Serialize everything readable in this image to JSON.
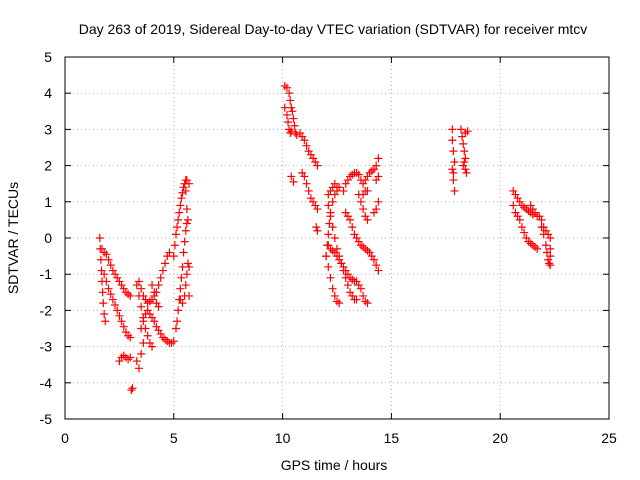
{
  "chart_data": {
    "type": "scatter",
    "title": "Day 263 of 2019, Sidereal Day-to-day VTEC variation (SDTVAR) for receiver mtcv",
    "xlabel": "GPS time / hours",
    "ylabel": "SDTVAR / TECUs",
    "xlim": [
      0,
      25
    ],
    "ylim": [
      -5,
      5
    ],
    "xticks": [
      0,
      5,
      10,
      15,
      20,
      25
    ],
    "yticks": [
      -5,
      -4,
      -3,
      -2,
      -1,
      0,
      1,
      2,
      3,
      4,
      5
    ],
    "grid": true,
    "marker": "+",
    "color": "#ff0000",
    "series": [
      {
        "points": [
          [
            1.6,
            0.0
          ],
          [
            1.62,
            -0.3
          ],
          [
            1.65,
            -0.6
          ],
          [
            1.68,
            -0.9
          ],
          [
            1.7,
            -1.2
          ],
          [
            1.73,
            -1.5
          ],
          [
            1.76,
            -1.8
          ],
          [
            1.8,
            -2.1
          ],
          [
            1.85,
            -2.3
          ],
          [
            1.7,
            -0.3
          ],
          [
            1.8,
            -0.4
          ],
          [
            1.9,
            -0.45
          ],
          [
            2.0,
            -0.6
          ],
          [
            2.1,
            -0.75
          ],
          [
            2.2,
            -0.9
          ],
          [
            2.3,
            -1.0
          ],
          [
            2.4,
            -1.1
          ],
          [
            2.5,
            -1.2
          ],
          [
            2.6,
            -1.3
          ],
          [
            2.7,
            -1.4
          ],
          [
            2.8,
            -1.5
          ],
          [
            2.9,
            -1.55
          ],
          [
            3.0,
            -1.6
          ],
          [
            1.8,
            -1.0
          ],
          [
            1.9,
            -1.2
          ],
          [
            2.0,
            -1.4
          ],
          [
            2.1,
            -1.55
          ],
          [
            2.2,
            -1.7
          ],
          [
            2.3,
            -1.85
          ],
          [
            2.4,
            -2.0
          ],
          [
            2.5,
            -2.15
          ],
          [
            2.6,
            -2.3
          ],
          [
            2.7,
            -2.45
          ],
          [
            2.8,
            -2.6
          ],
          [
            2.9,
            -2.7
          ],
          [
            3.0,
            -2.75
          ],
          [
            2.5,
            -3.4
          ],
          [
            2.6,
            -3.3
          ],
          [
            2.7,
            -3.25
          ],
          [
            2.8,
            -3.3
          ],
          [
            2.9,
            -3.35
          ],
          [
            3.0,
            -3.3
          ],
          [
            3.05,
            -4.2
          ],
          [
            3.1,
            -4.15
          ],
          [
            3.3,
            -1.3
          ],
          [
            3.4,
            -1.2
          ],
          [
            3.5,
            -1.4
          ],
          [
            3.6,
            -1.6
          ],
          [
            3.7,
            -1.7
          ],
          [
            3.8,
            -1.8
          ],
          [
            3.9,
            -1.75
          ],
          [
            4.0,
            -1.7
          ],
          [
            4.1,
            -1.6
          ],
          [
            4.2,
            -1.5
          ],
          [
            4.3,
            -1.3
          ],
          [
            4.4,
            -1.1
          ],
          [
            4.5,
            -0.9
          ],
          [
            4.6,
            -0.7
          ],
          [
            4.7,
            -0.5
          ],
          [
            4.8,
            -0.4
          ],
          [
            3.4,
            -1.6
          ],
          [
            3.5,
            -1.9
          ],
          [
            3.6,
            -2.2
          ],
          [
            3.7,
            -2.5
          ],
          [
            3.8,
            -2.7
          ],
          [
            3.9,
            -2.9
          ],
          [
            4.0,
            -3.0
          ],
          [
            3.3,
            -3.4
          ],
          [
            3.4,
            -3.6
          ],
          [
            3.5,
            -3.2
          ],
          [
            3.6,
            -2.9
          ],
          [
            3.5,
            -2.5
          ],
          [
            3.6,
            -2.3
          ],
          [
            3.7,
            -2.1
          ],
          [
            3.8,
            -2.0
          ],
          [
            3.9,
            -2.1
          ],
          [
            4.0,
            -2.2
          ],
          [
            4.1,
            -2.3
          ],
          [
            4.2,
            -2.45
          ],
          [
            4.3,
            -2.55
          ],
          [
            4.4,
            -2.65
          ],
          [
            4.5,
            -2.75
          ],
          [
            4.6,
            -2.8
          ],
          [
            4.7,
            -2.85
          ],
          [
            4.8,
            -2.9
          ],
          [
            4.9,
            -2.9
          ],
          [
            5.0,
            -2.85
          ],
          [
            4.0,
            -1.3
          ],
          [
            4.1,
            -1.5
          ],
          [
            4.2,
            -1.8
          ],
          [
            4.3,
            -1.9
          ],
          [
            5.0,
            -0.5
          ],
          [
            5.05,
            -0.2
          ],
          [
            5.1,
            0.1
          ],
          [
            5.15,
            0.3
          ],
          [
            5.2,
            0.5
          ],
          [
            5.25,
            0.7
          ],
          [
            5.3,
            0.9
          ],
          [
            5.35,
            1.1
          ],
          [
            5.4,
            1.25
          ],
          [
            5.45,
            1.4
          ],
          [
            5.5,
            1.5
          ],
          [
            5.55,
            1.6
          ],
          [
            5.6,
            1.6
          ],
          [
            5.55,
            1.3
          ],
          [
            5.1,
            -2.5
          ],
          [
            5.15,
            -2.3
          ],
          [
            5.2,
            -2.0
          ],
          [
            5.25,
            -1.7
          ],
          [
            5.3,
            -1.4
          ],
          [
            5.35,
            -1.1
          ],
          [
            5.4,
            -0.8
          ],
          [
            5.45,
            -0.4
          ],
          [
            5.5,
            -0.1
          ],
          [
            5.55,
            0.2
          ],
          [
            5.6,
            0.4
          ],
          [
            5.65,
            0.5
          ],
          [
            5.6,
            0.8
          ],
          [
            5.7,
            1.5
          ],
          [
            5.3,
            -1.7
          ],
          [
            5.4,
            -1.8
          ],
          [
            5.5,
            -1.6
          ],
          [
            5.55,
            -1.3
          ],
          [
            5.6,
            -1.0
          ],
          [
            5.65,
            -0.7
          ],
          [
            5.7,
            -0.8
          ],
          [
            5.7,
            -1.6
          ],
          [
            10.1,
            4.2
          ],
          [
            10.2,
            4.15
          ],
          [
            10.3,
            4.0
          ],
          [
            10.35,
            3.8
          ],
          [
            10.4,
            3.6
          ],
          [
            10.45,
            3.5
          ],
          [
            10.5,
            3.3
          ],
          [
            10.55,
            3.1
          ],
          [
            10.6,
            2.9
          ],
          [
            10.65,
            2.85
          ],
          [
            10.1,
            3.6
          ],
          [
            10.2,
            3.4
          ],
          [
            10.25,
            3.2
          ],
          [
            10.3,
            3.0
          ],
          [
            10.35,
            2.9
          ],
          [
            10.4,
            2.95
          ],
          [
            10.4,
            1.7
          ],
          [
            10.5,
            1.55
          ],
          [
            10.8,
            2.9
          ],
          [
            10.9,
            2.8
          ],
          [
            11.0,
            2.7
          ],
          [
            11.1,
            2.55
          ],
          [
            11.2,
            2.4
          ],
          [
            11.3,
            2.3
          ],
          [
            11.4,
            2.2
          ],
          [
            11.5,
            2.1
          ],
          [
            11.6,
            2.0
          ],
          [
            10.9,
            1.8
          ],
          [
            11.0,
            1.7
          ],
          [
            11.1,
            1.5
          ],
          [
            11.2,
            1.3
          ],
          [
            11.3,
            1.1
          ],
          [
            11.4,
            1.0
          ],
          [
            11.5,
            0.9
          ],
          [
            11.6,
            0.8
          ],
          [
            11.55,
            0.3
          ],
          [
            11.6,
            0.2
          ],
          [
            12.0,
            -0.5
          ],
          [
            12.05,
            -0.2
          ],
          [
            12.1,
            0.1
          ],
          [
            12.15,
            0.4
          ],
          [
            12.2,
            0.7
          ],
          [
            12.3,
            1.0
          ],
          [
            12.4,
            1.2
          ],
          [
            12.5,
            1.3
          ],
          [
            12.6,
            1.4
          ],
          [
            12.1,
            1.2
          ],
          [
            12.2,
            1.3
          ],
          [
            12.3,
            1.4
          ],
          [
            12.4,
            1.5
          ],
          [
            12.5,
            1.4
          ],
          [
            12.1,
            0.9
          ],
          [
            12.2,
            0.6
          ],
          [
            12.3,
            0.3
          ],
          [
            12.4,
            0.0
          ],
          [
            12.5,
            -0.3
          ],
          [
            12.6,
            -0.5
          ],
          [
            12.7,
            -0.7
          ],
          [
            12.8,
            -0.9
          ],
          [
            12.9,
            -1.1
          ],
          [
            13.0,
            -1.3
          ],
          [
            13.1,
            -1.5
          ],
          [
            13.2,
            -1.6
          ],
          [
            13.3,
            -1.7
          ],
          [
            13.4,
            -1.7
          ],
          [
            12.0,
            -0.5
          ],
          [
            12.1,
            -0.8
          ],
          [
            12.2,
            -1.1
          ],
          [
            12.3,
            -1.4
          ],
          [
            12.4,
            -1.6
          ],
          [
            12.5,
            -1.75
          ],
          [
            12.6,
            -1.8
          ],
          [
            12.1,
            -0.2
          ],
          [
            12.2,
            -0.3
          ],
          [
            12.3,
            -0.35
          ],
          [
            12.4,
            -0.4
          ],
          [
            12.5,
            -0.5
          ],
          [
            12.6,
            -0.6
          ],
          [
            12.7,
            -0.7
          ],
          [
            12.8,
            -0.8
          ],
          [
            12.9,
            -0.9
          ],
          [
            13.0,
            -1.0
          ],
          [
            13.1,
            -1.1
          ],
          [
            13.2,
            -1.15
          ],
          [
            13.3,
            -1.2
          ],
          [
            13.4,
            -1.2
          ],
          [
            13.5,
            -1.3
          ],
          [
            13.6,
            -1.4
          ],
          [
            13.7,
            -1.6
          ],
          [
            13.8,
            -1.75
          ],
          [
            13.9,
            -1.8
          ],
          [
            12.8,
            1.3
          ],
          [
            12.9,
            1.5
          ],
          [
            13.0,
            1.6
          ],
          [
            13.1,
            1.7
          ],
          [
            13.2,
            1.75
          ],
          [
            13.3,
            1.8
          ],
          [
            13.4,
            1.8
          ],
          [
            13.5,
            1.75
          ],
          [
            13.6,
            1.6
          ],
          [
            13.7,
            1.5
          ],
          [
            13.8,
            1.6
          ],
          [
            13.9,
            1.7
          ],
          [
            14.0,
            1.8
          ],
          [
            14.1,
            1.85
          ],
          [
            14.2,
            1.9
          ],
          [
            14.3,
            2.0
          ],
          [
            14.4,
            2.2
          ],
          [
            12.9,
            0.7
          ],
          [
            13.0,
            0.6
          ],
          [
            13.1,
            0.5
          ],
          [
            13.2,
            0.3
          ],
          [
            13.3,
            0.1
          ],
          [
            13.4,
            0.0
          ],
          [
            13.5,
            -0.1
          ],
          [
            13.6,
            -0.2
          ],
          [
            13.7,
            -0.25
          ],
          [
            13.8,
            -0.3
          ],
          [
            13.9,
            -0.35
          ],
          [
            14.0,
            -0.4
          ],
          [
            14.1,
            -0.5
          ],
          [
            14.2,
            -0.6
          ],
          [
            14.3,
            -0.75
          ],
          [
            14.4,
            -0.9
          ],
          [
            13.5,
            1.2
          ],
          [
            13.6,
            1.0
          ],
          [
            13.7,
            0.8
          ],
          [
            13.8,
            0.6
          ],
          [
            13.9,
            0.5
          ],
          [
            13.7,
            1.2
          ],
          [
            13.8,
            1.3
          ],
          [
            13.9,
            1.3
          ],
          [
            14.2,
            0.7
          ],
          [
            14.3,
            0.8
          ],
          [
            14.4,
            1.0
          ],
          [
            14.3,
            1.6
          ],
          [
            14.4,
            1.7
          ],
          [
            17.8,
            3.0
          ],
          [
            17.8,
            2.7
          ],
          [
            17.85,
            2.4
          ],
          [
            17.9,
            2.1
          ],
          [
            17.8,
            1.9
          ],
          [
            17.85,
            1.6
          ],
          [
            17.9,
            1.3
          ],
          [
            17.85,
            1.8
          ],
          [
            18.2,
            3.0
          ],
          [
            18.25,
            2.8
          ],
          [
            18.3,
            2.6
          ],
          [
            18.35,
            2.4
          ],
          [
            18.4,
            2.2
          ],
          [
            18.3,
            2.0
          ],
          [
            18.4,
            1.9
          ],
          [
            18.45,
            1.8
          ],
          [
            18.4,
            2.9
          ],
          [
            18.5,
            2.95
          ],
          [
            18.35,
            2.1
          ],
          [
            20.6,
            1.3
          ],
          [
            20.7,
            1.2
          ],
          [
            20.8,
            1.1
          ],
          [
            20.9,
            1.0
          ],
          [
            21.0,
            0.9
          ],
          [
            21.1,
            0.85
          ],
          [
            21.2,
            0.8
          ],
          [
            21.3,
            0.75
          ],
          [
            21.4,
            0.7
          ],
          [
            21.5,
            0.65
          ],
          [
            20.6,
            0.9
          ],
          [
            20.7,
            0.7
          ],
          [
            20.8,
            0.6
          ],
          [
            20.9,
            0.5
          ],
          [
            21.0,
            0.3
          ],
          [
            21.1,
            0.15
          ],
          [
            21.2,
            0.0
          ],
          [
            21.3,
            -0.1
          ],
          [
            21.4,
            -0.15
          ],
          [
            21.5,
            -0.2
          ],
          [
            21.6,
            -0.25
          ],
          [
            21.7,
            -0.3
          ],
          [
            21.4,
            0.9
          ],
          [
            21.5,
            0.8
          ],
          [
            21.6,
            0.7
          ],
          [
            21.7,
            0.6
          ],
          [
            21.8,
            0.6
          ],
          [
            21.9,
            0.5
          ],
          [
            22.0,
            0.3
          ],
          [
            22.1,
            0.2
          ],
          [
            22.2,
            0.1
          ],
          [
            22.3,
            0.0
          ],
          [
            21.9,
            0.3
          ],
          [
            22.0,
            0.1
          ],
          [
            22.1,
            -0.2
          ],
          [
            22.15,
            -0.4
          ],
          [
            22.2,
            -0.6
          ],
          [
            22.25,
            -0.7
          ],
          [
            22.3,
            -0.75
          ],
          [
            22.3,
            -0.5
          ],
          [
            22.3,
            -0.3
          ]
        ]
      }
    ]
  }
}
